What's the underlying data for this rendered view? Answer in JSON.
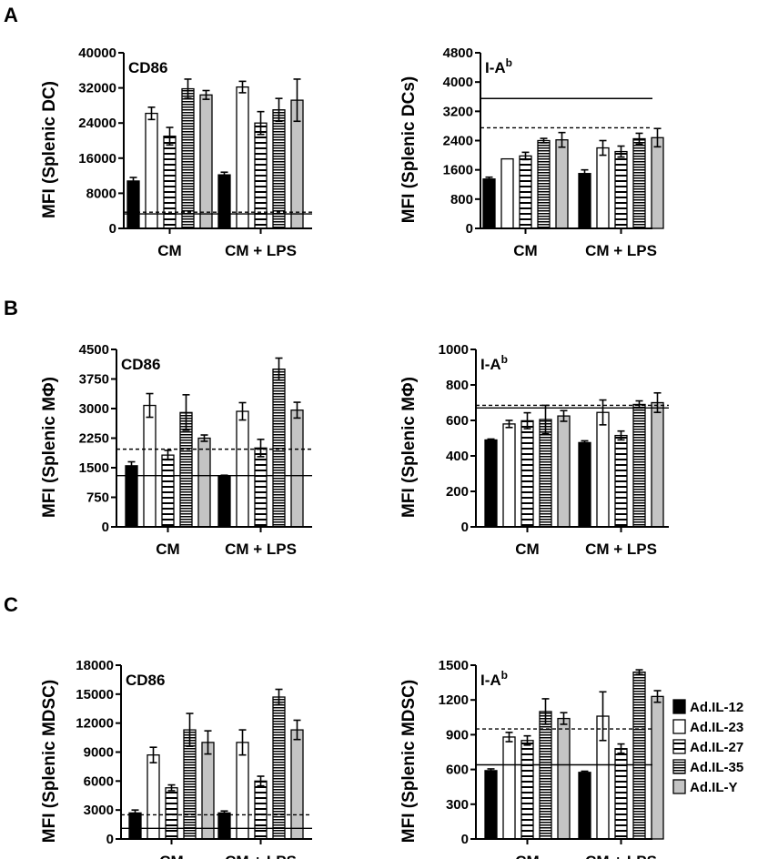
{
  "panel_letters": [
    "A",
    "B",
    "C"
  ],
  "legend": {
    "entries": [
      {
        "label": "Ad.IL-12",
        "fill": "black"
      },
      {
        "label": "Ad.IL-23",
        "fill": "white"
      },
      {
        "label": "Ad.IL-27",
        "fill": "hstripe-wide"
      },
      {
        "label": "Ad.IL-35",
        "fill": "hstripe-dense"
      },
      {
        "label": "Ad.IL-Y",
        "fill": "gray"
      }
    ],
    "placement": "right"
  },
  "chart_data": [
    {
      "type": "bar",
      "panel": "A",
      "position": "left",
      "marker": "CD86",
      "ylabel": "MFI (Splenic DC)",
      "ylim": [
        0,
        40000
      ],
      "yticks": [
        0,
        8000,
        16000,
        24000,
        32000,
        40000
      ],
      "ytick_labels": [
        "0",
        "8000",
        "16000",
        "24000",
        "32000",
        "40000"
      ],
      "categories": [
        "CM",
        "CM + LPS"
      ],
      "series": [
        {
          "name": "Ad.IL-12",
          "values": [
            10800,
            12200
          ],
          "errors": [
            800,
            600
          ]
        },
        {
          "name": "Ad.IL-23",
          "values": [
            26200,
            32200
          ],
          "errors": [
            1400,
            1300
          ]
        },
        {
          "name": "Ad.IL-27",
          "values": [
            21000,
            24000
          ],
          "errors": [
            2000,
            2600
          ]
        },
        {
          "name": "Ad.IL-35",
          "values": [
            31800,
            27000
          ],
          "errors": [
            2200,
            2600
          ]
        },
        {
          "name": "Ad.IL-Y",
          "values": [
            30400,
            29200
          ],
          "errors": [
            1000,
            4800
          ]
        }
      ],
      "ref_solid": 3300,
      "ref_dashed": 3700
    },
    {
      "type": "bar",
      "panel": "A",
      "position": "right",
      "marker": "I-A",
      "marker_sup": "b",
      "ylabel": "MFI (Splenic DCs)",
      "ylim": [
        0,
        4800
      ],
      "yticks": [
        0,
        800,
        1600,
        2400,
        3200,
        4000,
        4800
      ],
      "ytick_labels": [
        "0",
        "800",
        "1600",
        "2400",
        "3200",
        "4000",
        "4800"
      ],
      "categories": [
        "CM",
        "CM + LPS"
      ],
      "series": [
        {
          "name": "Ad.IL-12",
          "values": [
            1350,
            1500
          ],
          "errors": [
            50,
            100
          ]
        },
        {
          "name": "Ad.IL-23",
          "values": [
            1900,
            2200
          ],
          "errors": [
            0,
            200
          ]
        },
        {
          "name": "Ad.IL-27",
          "values": [
            1980,
            2100
          ],
          "errors": [
            100,
            150
          ]
        },
        {
          "name": "Ad.IL-35",
          "values": [
            2400,
            2450
          ],
          "errors": [
            60,
            150
          ]
        },
        {
          "name": "Ad.IL-Y",
          "values": [
            2420,
            2480
          ],
          "errors": [
            200,
            250
          ]
        }
      ],
      "ref_solid": 3550,
      "ref_dashed": 2750
    },
    {
      "type": "bar",
      "panel": "B",
      "position": "left",
      "marker": "CD86",
      "ylabel": "MFI (Splenic MΦ)",
      "ylim": [
        0,
        4500
      ],
      "yticks": [
        0,
        750,
        1500,
        2250,
        3000,
        3750,
        4500
      ],
      "ytick_labels": [
        "0",
        "750",
        "1500",
        "2250",
        "3000",
        "3750",
        "4500"
      ],
      "categories": [
        "CM",
        "CM + LPS"
      ],
      "series": [
        {
          "name": "Ad.IL-12",
          "values": [
            1550,
            1280
          ],
          "errors": [
            100,
            30
          ]
        },
        {
          "name": "Ad.IL-23",
          "values": [
            3080,
            2930
          ],
          "errors": [
            300,
            220
          ]
        },
        {
          "name": "Ad.IL-27",
          "values": [
            1820,
            2000
          ],
          "errors": [
            120,
            220
          ]
        },
        {
          "name": "Ad.IL-35",
          "values": [
            2900,
            4000
          ],
          "errors": [
            450,
            280
          ]
        },
        {
          "name": "Ad.IL-Y",
          "values": [
            2250,
            2960
          ],
          "errors": [
            80,
            200
          ]
        }
      ],
      "ref_solid": 1300,
      "ref_dashed": 1970
    },
    {
      "type": "bar",
      "panel": "B",
      "position": "right",
      "marker": "I-A",
      "marker_sup": "b",
      "ylabel": "MFI (Splenic MΦ)",
      "ylim": [
        0,
        1000
      ],
      "yticks": [
        0,
        200,
        400,
        600,
        800,
        1000
      ],
      "ytick_labels": [
        "0",
        "200",
        "400",
        "600",
        "800",
        "1000"
      ],
      "categories": [
        "CM",
        "CM + LPS"
      ],
      "series": [
        {
          "name": "Ad.IL-12",
          "values": [
            490,
            475
          ],
          "errors": [
            5,
            10
          ]
        },
        {
          "name": "Ad.IL-23",
          "values": [
            580,
            645
          ],
          "errors": [
            20,
            70
          ]
        },
        {
          "name": "Ad.IL-27",
          "values": [
            598,
            515
          ],
          "errors": [
            45,
            25
          ]
        },
        {
          "name": "Ad.IL-35",
          "values": [
            605,
            690
          ],
          "errors": [
            80,
            20
          ]
        },
        {
          "name": "Ad.IL-Y",
          "values": [
            625,
            700
          ],
          "errors": [
            30,
            55
          ]
        }
      ],
      "ref_solid": 670,
      "ref_dashed": 685
    },
    {
      "type": "bar",
      "panel": "C",
      "position": "left",
      "marker": "CD86",
      "ylabel": "MFI (Splenic MDSC)",
      "ylim": [
        0,
        18000
      ],
      "yticks": [
        0,
        3000,
        6000,
        9000,
        12000,
        15000,
        18000
      ],
      "ytick_labels": [
        "0",
        "3000",
        "6000",
        "9000",
        "12000",
        "15000",
        "18000"
      ],
      "categories": [
        "CM",
        "CM + LPS"
      ],
      "series": [
        {
          "name": "Ad.IL-12",
          "values": [
            2700,
            2700
          ],
          "errors": [
            300,
            200
          ]
        },
        {
          "name": "Ad.IL-23",
          "values": [
            8700,
            10000
          ],
          "errors": [
            800,
            1300
          ]
        },
        {
          "name": "Ad.IL-27",
          "values": [
            5300,
            6000
          ],
          "errors": [
            300,
            500
          ]
        },
        {
          "name": "Ad.IL-35",
          "values": [
            11300,
            14700
          ],
          "errors": [
            1700,
            800
          ]
        },
        {
          "name": "Ad.IL-Y",
          "values": [
            10000,
            11300
          ],
          "errors": [
            1200,
            1000
          ]
        }
      ],
      "ref_solid": 1100,
      "ref_dashed": 2500
    },
    {
      "type": "bar",
      "panel": "C",
      "position": "right",
      "marker": "I-A",
      "marker_sup": "b",
      "ylabel": "MFI (Splenic MDSC)",
      "ylim": [
        0,
        1500
      ],
      "yticks": [
        0,
        300,
        600,
        900,
        1200,
        1500
      ],
      "ytick_labels": [
        "0",
        "300",
        "600",
        "900",
        "1200",
        "1500"
      ],
      "categories": [
        "CM",
        "CM + LPS"
      ],
      "series": [
        {
          "name": "Ad.IL-12",
          "values": [
            590,
            575
          ],
          "errors": [
            15,
            10
          ]
        },
        {
          "name": "Ad.IL-23",
          "values": [
            880,
            1060
          ],
          "errors": [
            40,
            210
          ]
        },
        {
          "name": "Ad.IL-27",
          "values": [
            850,
            780
          ],
          "errors": [
            40,
            40
          ]
        },
        {
          "name": "Ad.IL-35",
          "values": [
            1100,
            1440
          ],
          "errors": [
            110,
            20
          ]
        },
        {
          "name": "Ad.IL-Y",
          "values": [
            1040,
            1230
          ],
          "errors": [
            50,
            50
          ]
        }
      ],
      "ref_solid": 640,
      "ref_dashed": 950
    }
  ]
}
